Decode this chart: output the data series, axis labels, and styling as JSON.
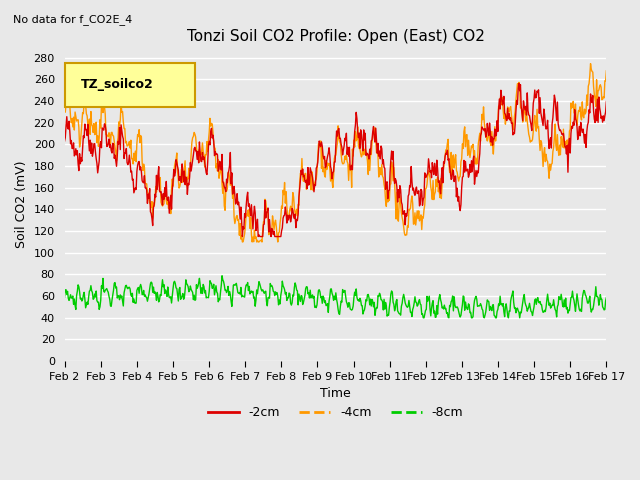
{
  "title": "Tonzi Soil CO2 Profile: Open (East) CO2",
  "subtitle": "No data for f_CO2E_4",
  "ylabel": "Soil CO2 (mV)",
  "xlabel": "Time",
  "legend_label": "TZ_soilco2",
  "ylim": [
    0,
    290
  ],
  "yticks": [
    0,
    20,
    40,
    60,
    80,
    100,
    120,
    140,
    160,
    180,
    200,
    220,
    240,
    260,
    280
  ],
  "x_tick_labels": [
    "Feb 2",
    "Feb 3",
    "Feb 4",
    "Feb 5",
    "Feb 6",
    "Feb 7",
    "Feb 8",
    "Feb 9",
    "Feb 10",
    "Feb 11",
    "Feb 12",
    "Feb 13",
    "Feb 14",
    "Feb 15",
    "Feb 16",
    "Feb 17"
  ],
  "color_2cm": "#dd0000",
  "color_4cm": "#ff9900",
  "color_8cm": "#00cc00",
  "line_width": 1.0,
  "bg_color": "#e8e8e8",
  "plot_bg_color": "#e8e8e8",
  "grid_color": "#ffffff",
  "legend_box_color": "#ffff99",
  "legend_box_edge": "#cc9900"
}
